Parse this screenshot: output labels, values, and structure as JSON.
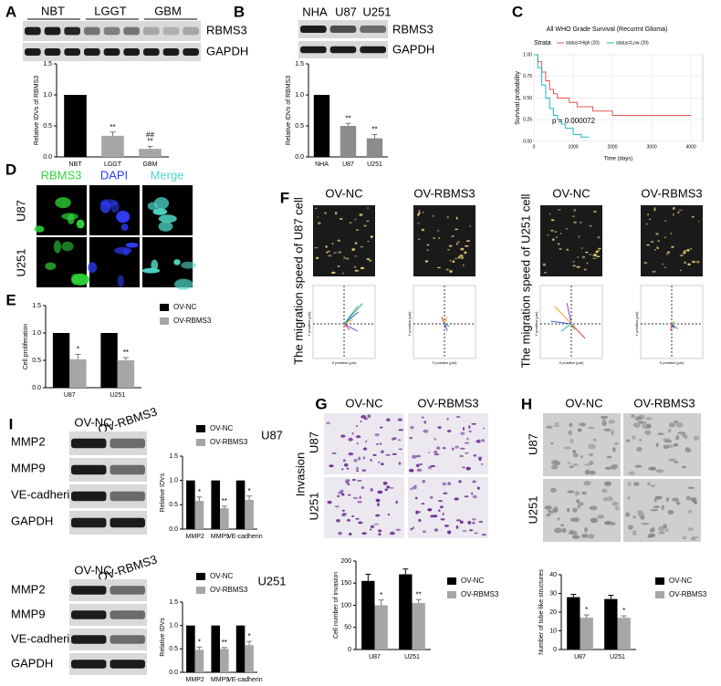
{
  "panels": {
    "a": {
      "letter": "A",
      "lanes": [
        "NBT",
        "LGGT",
        "GBM"
      ],
      "blots": [
        "RBMS3",
        "GAPDH"
      ],
      "chart_data": {
        "type": "bar",
        "y_label": "Relative IDVs of RBMS3",
        "categories": [
          "NBT",
          "LGGT",
          "GBM"
        ],
        "values": [
          1,
          0.34,
          0.13
        ],
        "errors": [
          null,
          0.06,
          0.04
        ],
        "colors": [
          "#000000",
          "#a6a6a6",
          "#a6a6a6"
        ],
        "annotations": [
          [],
          [
            "**"
          ],
          [
            "##",
            "**"
          ]
        ],
        "ylim": [
          0,
          1.5
        ],
        "yticks": [
          {
            "value": 0,
            "label": "0.0"
          },
          {
            "value": 0.5,
            "label": "0.5"
          },
          {
            "value": 1,
            "label": "1.0"
          },
          {
            "value": 1.5,
            "label": "1.5"
          }
        ]
      }
    },
    "b": {
      "letter": "B",
      "lanes": [
        "NHA",
        "U87",
        "U251"
      ],
      "blots": [
        "RBMS3",
        "GAPDH"
      ],
      "chart_data": {
        "type": "bar",
        "y_label": "Relative IDVs of RBMS3",
        "categories": [
          "NHA",
          "U87",
          "U251"
        ],
        "values": [
          1,
          0.5,
          0.3
        ],
        "errors": [
          null,
          0.04,
          0.06
        ],
        "colors": [
          "#000000",
          "#8c8c8c",
          "#8c8c8c"
        ],
        "annotations": [
          [],
          [
            "**"
          ],
          [
            "**"
          ]
        ],
        "ylim": [
          0,
          1.5
        ],
        "yticks": [
          {
            "value": 0,
            "label": "0.0"
          },
          {
            "value": 0.5,
            "label": "0.5"
          },
          {
            "value": 1,
            "label": "1.0"
          },
          {
            "value": 1.5,
            "label": "1.5"
          }
        ]
      }
    },
    "c": {
      "letter": "C",
      "chart_data": {
        "type": "km",
        "title": "All WHO Grade Survival (Recurrnt Glioma)",
        "legend_title": "Strata",
        "x_label": "Time (days)",
        "y_label": "Survival probability",
        "annotation": "p = 0.000072",
        "series": [
          {
            "name": "status=High (20)",
            "color": "#e2574c",
            "x": [
              0,
              100,
              200,
              300,
              400,
              500,
              600,
              900,
              1100,
              1500,
              2000,
              4000
            ],
            "values": [
              1,
              0.92,
              0.8,
              0.7,
              0.6,
              0.55,
              0.5,
              0.45,
              0.4,
              0.35,
              0.3,
              0.3
            ]
          },
          {
            "name": "status=Low (29)",
            "color": "#22b8bd",
            "x": [
              0,
              100,
              200,
              300,
              400,
              500,
              600,
              700,
              800,
              1000,
              1200,
              1400
            ],
            "values": [
              1,
              0.85,
              0.65,
              0.5,
              0.38,
              0.3,
              0.25,
              0.2,
              0.15,
              0.08,
              0.05,
              0.05
            ]
          }
        ],
        "xlim": [
          0,
          4300
        ],
        "xticks": [
          0,
          1000,
          2000,
          3000,
          4000
        ],
        "ylim": [
          0,
          1
        ],
        "yticks": [
          {
            "value": 0,
            "label": "0.00"
          },
          {
            "value": 0.25,
            "label": "0.25"
          },
          {
            "value": 0.5,
            "label": "0.50"
          },
          {
            "value": 0.75,
            "label": "0.75"
          },
          {
            "value": 1,
            "label": "1.00"
          }
        ]
      }
    },
    "d": {
      "letter": "D",
      "columns": [
        "RBMS3",
        "DAPI",
        "Merge"
      ],
      "rows": [
        "U87",
        "U251"
      ]
    },
    "e": {
      "letter": "E",
      "chart_data": {
        "type": "bar",
        "y_label": "Cell proliferation",
        "categories": [
          "U87",
          "U251"
        ],
        "series": [
          {
            "name": "OV-NC",
            "color": "#000000",
            "values": [
              1,
              1
            ],
            "errors": [
              null,
              null
            ]
          },
          {
            "name": "OV-RBMS3",
            "color": "#a6a6a6",
            "values": [
              0.52,
              0.5
            ],
            "errors": [
              0.09,
              0.05
            ],
            "annotations": [
              [
                "*"
              ],
              [
                "**"
              ]
            ]
          }
        ],
        "ylim": [
          0,
          1.5
        ],
        "yticks": [
          {
            "value": 0,
            "label": "0.0"
          },
          {
            "value": 0.5,
            "label": "0.5"
          },
          {
            "value": 1,
            "label": "1.0"
          },
          {
            "value": 1.5,
            "label": "1.5"
          }
        ]
      }
    },
    "f": {
      "letter": "F",
      "x_label": "X position (μm)",
      "y_label": "Y position (μm)",
      "groups": [
        {
          "title": "The migration speed of U87 cell",
          "columns": [
            "OV-NC",
            "OV-RBMS3"
          ]
        },
        {
          "title": "The migration speed of U251 cell",
          "columns": [
            "OV-NC",
            "OV-RBMS3"
          ]
        }
      ]
    },
    "g": {
      "letter": "G",
      "columns": [
        "OV-NC",
        "OV-RBMS3"
      ],
      "row_group": "Invasion",
      "rows": [
        "U87",
        "U251"
      ],
      "chart_data": {
        "type": "bar",
        "y_label": "Cell number of invasion",
        "categories": [
          "U87",
          "U251"
        ],
        "series": [
          {
            "name": "OV-NC",
            "color": "#000000",
            "values": [
              155,
              170
            ],
            "errors": [
              15,
              12
            ]
          },
          {
            "name": "OV-RBMS3",
            "color": "#a6a6a6",
            "values": [
              100,
              105
            ],
            "errors": [
              12,
              8
            ],
            "annotations": [
              [
                "*"
              ],
              [
                "**"
              ]
            ]
          }
        ],
        "ylim": [
          0,
          200
        ],
        "yticks": [
          0,
          50,
          100,
          150,
          200
        ]
      }
    },
    "h": {
      "letter": "H",
      "columns": [
        "OV-NC",
        "OV-RBMS3"
      ],
      "rows": [
        "U87",
        "U251"
      ],
      "chart_data": {
        "type": "bar",
        "y_label": "Number of tube-like structures",
        "categories": [
          "U87",
          "U251"
        ],
        "series": [
          {
            "name": "OV-NC",
            "color": "#000000",
            "values": [
              28,
              27
            ],
            "errors": [
              1.5,
              2
            ]
          },
          {
            "name": "OV-RBMS3",
            "color": "#a6a6a6",
            "values": [
              17,
              17
            ],
            "errors": [
              1.5,
              1
            ],
            "annotations": [
              [
                "*"
              ],
              [
                "*"
              ]
            ]
          }
        ],
        "ylim": [
          0,
          40
        ],
        "yticks": [
          0,
          10,
          20,
          30,
          40
        ]
      }
    },
    "i": {
      "letter": "I",
      "top": {
        "columns": [
          "OV-NC",
          "OV-RBMS3"
        ],
        "rows": [
          "MMP2",
          "MMP9",
          "VE-cadherin",
          "GAPDH"
        ],
        "chart_data": {
          "type": "bar",
          "title": "U87",
          "y_label": "Relative IDVs",
          "categories": [
            "MMP2",
            "MMP9",
            "VE-cadherin"
          ],
          "series": [
            {
              "name": "OV-NC",
              "color": "#000000",
              "values": [
                1,
                1,
                1
              ],
              "errors": [
                null,
                null,
                null
              ]
            },
            {
              "name": "OV-RBMS3",
              "color": "#a6a6a6",
              "values": [
                0.58,
                0.43,
                0.6
              ],
              "errors": [
                0.08,
                0.04,
                0.08
              ],
              "annotations": [
                [
                  "*"
                ],
                [
                  "**"
                ],
                [
                  "*"
                ]
              ]
            }
          ],
          "ylim": [
            0,
            1.5
          ],
          "yticks": [
            {
              "value": 0,
              "label": "0.0"
            },
            {
              "value": 0.5,
              "label": "0.5"
            },
            {
              "value": 1,
              "label": "1.0"
            },
            {
              "value": 1.5,
              "label": "1.5"
            }
          ]
        }
      },
      "bottom": {
        "columns": [
          "OV-NC",
          "OV-RBMS3"
        ],
        "rows": [
          "MMP2",
          "MMP9",
          "VE-cadherin",
          "GAPDH"
        ],
        "chart_data": {
          "type": "bar",
          "title": "U251",
          "y_label": "Relative IDVs",
          "categories": [
            "MMP2",
            "MMP9",
            "VE-cadherin"
          ],
          "series": [
            {
              "name": "OV-NC",
              "color": "#000000",
              "values": [
                1,
                1,
                1
              ],
              "errors": [
                null,
                null,
                null
              ]
            },
            {
              "name": "OV-RBMS3",
              "color": "#a6a6a6",
              "values": [
                0.48,
                0.5,
                0.58
              ],
              "errors": [
                0.06,
                0.03,
                0.08
              ],
              "annotations": [
                [
                  "*"
                ],
                [
                  "**"
                ],
                [
                  "*"
                ]
              ]
            }
          ],
          "ylim": [
            0,
            1.5
          ],
          "yticks": [
            {
              "value": 0,
              "label": "0.0"
            },
            {
              "value": 0.5,
              "label": "0.5"
            },
            {
              "value": 1,
              "label": "1.0"
            },
            {
              "value": 1.5,
              "label": "1.5"
            }
          ]
        }
      }
    }
  }
}
